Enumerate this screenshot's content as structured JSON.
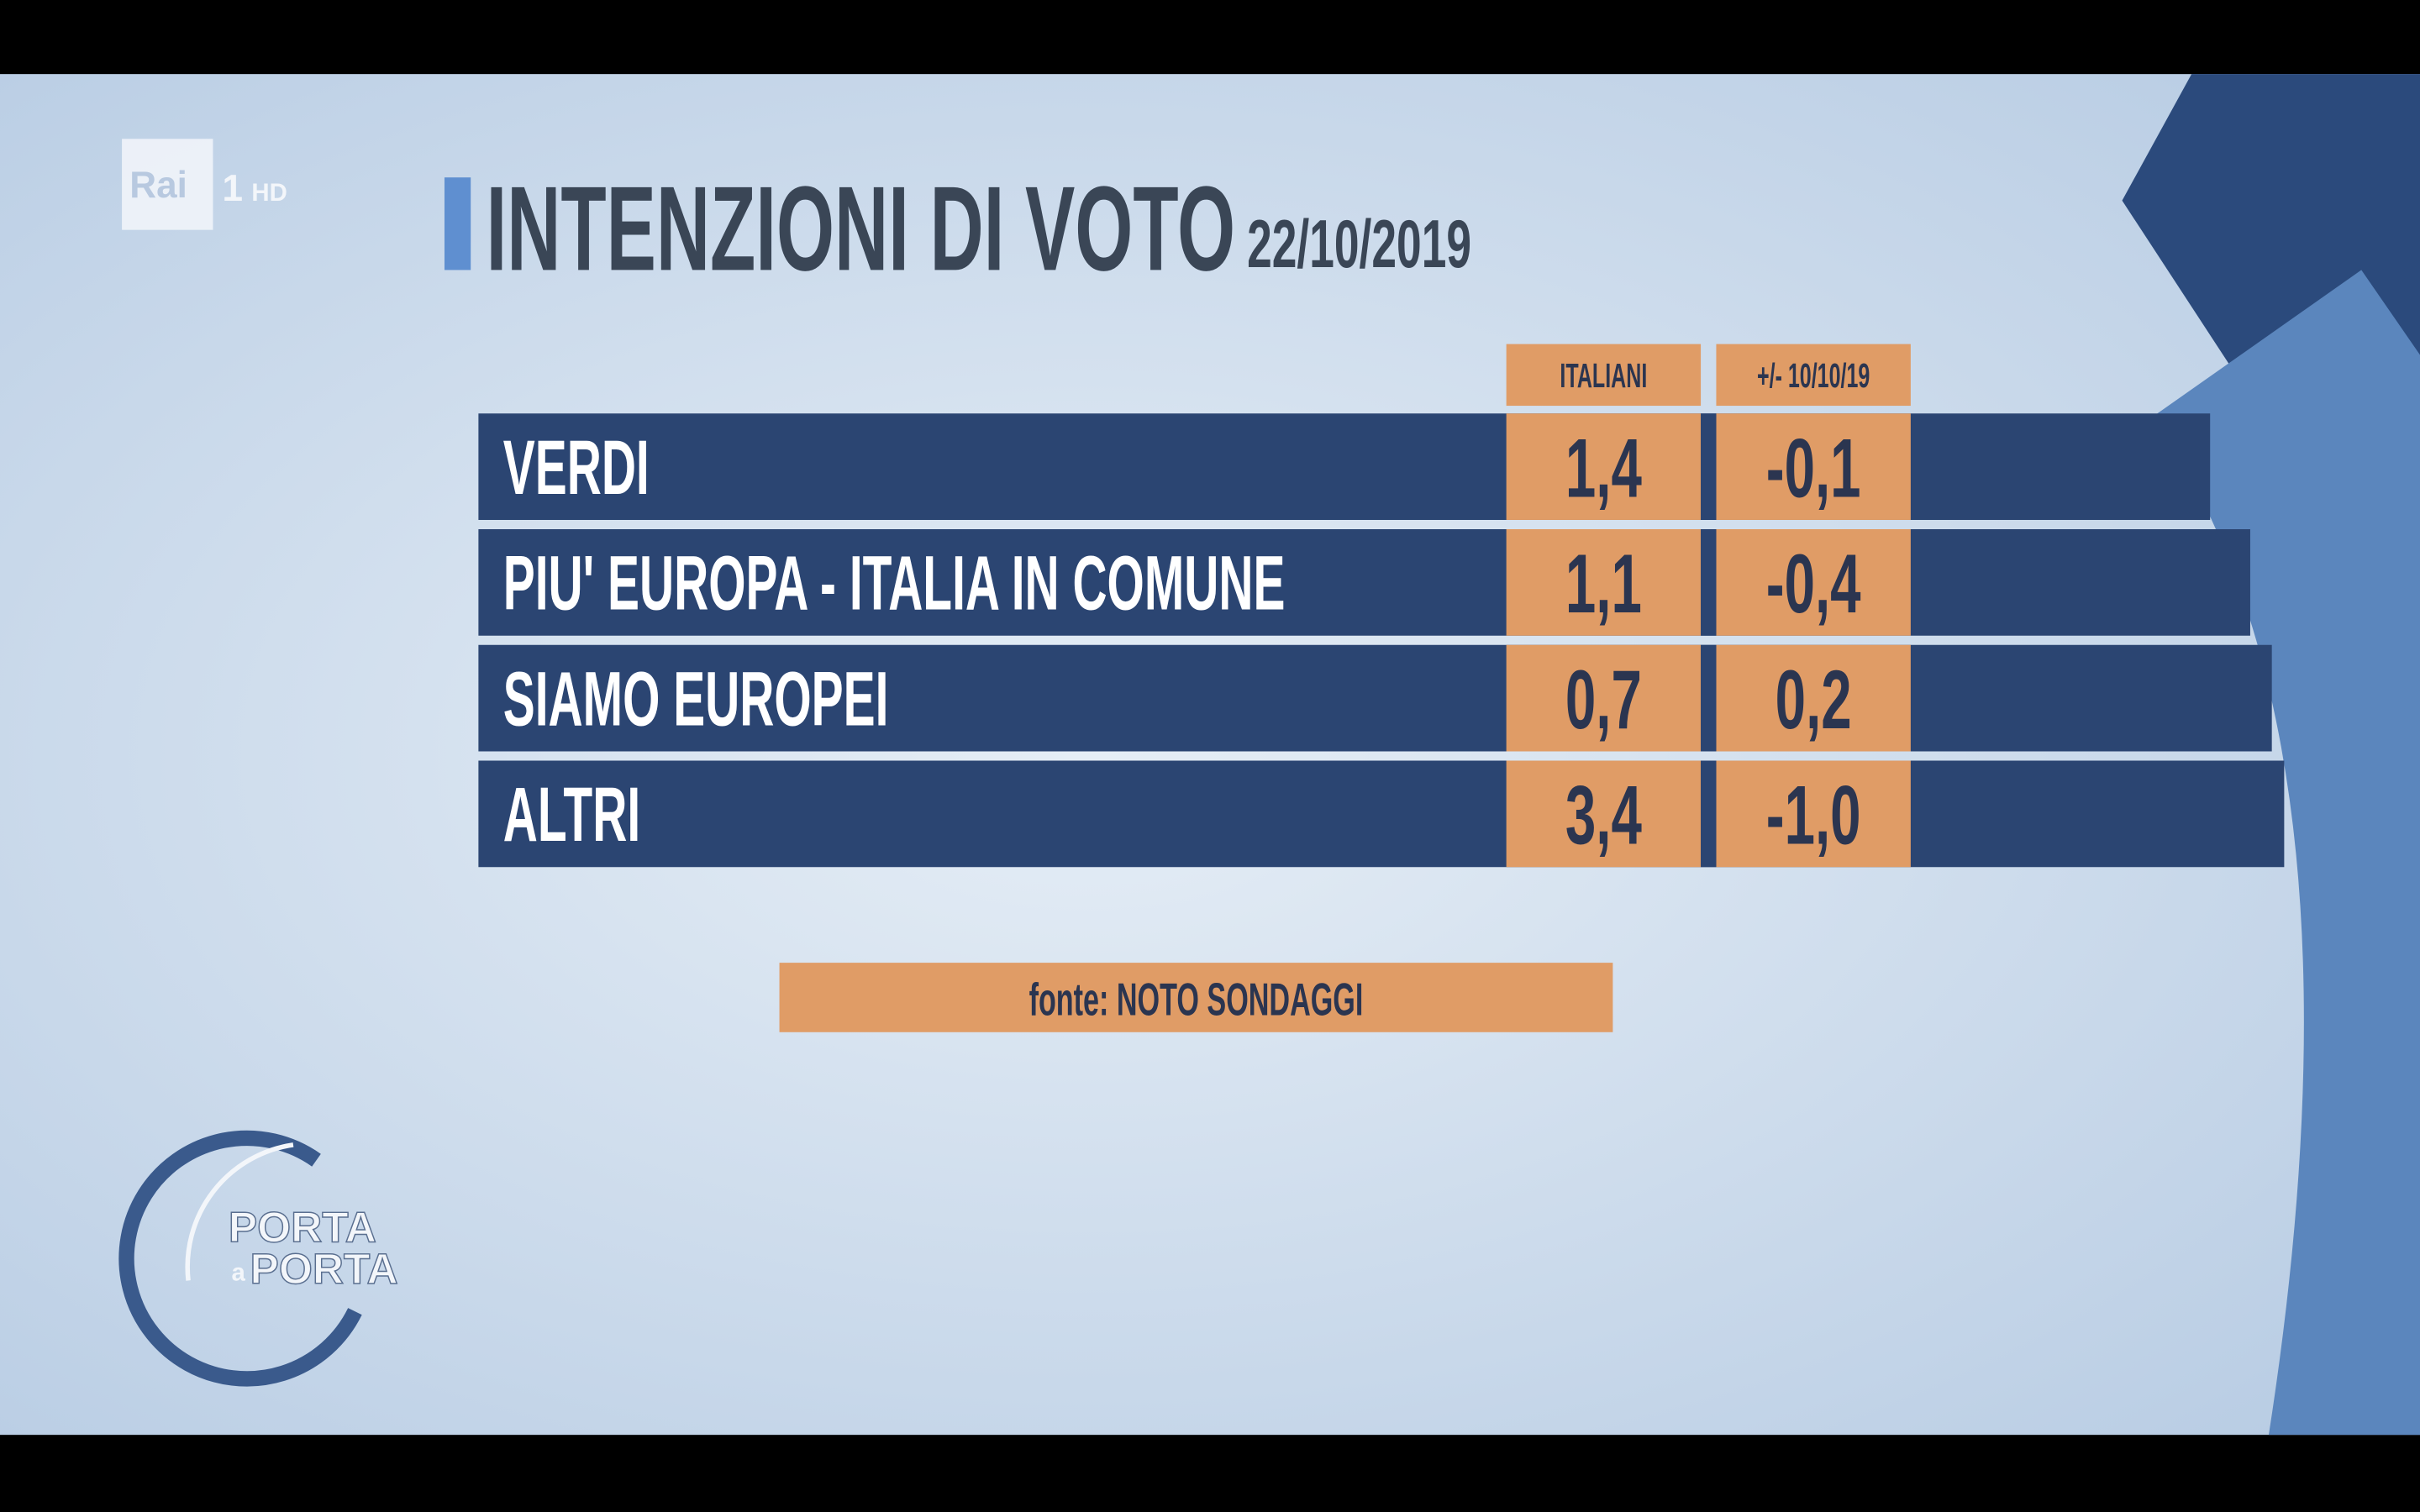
{
  "logo": {
    "channel": "Rai",
    "number": "1",
    "hd": "HD"
  },
  "header": {
    "title": "INTENZIONI DI VOTO",
    "date": "22/10/2019"
  },
  "table": {
    "columns": [
      "ITALIANI",
      "+/- 10/10/19"
    ],
    "rows": [
      [
        "VERDI",
        "1,4",
        "-0,1"
      ],
      [
        "PIU' EUROPA - ITALIA IN COMUNE",
        "1,1",
        "-0,4"
      ],
      [
        "SIAMO EUROPEI",
        "0,7",
        "0,2"
      ],
      [
        "ALTRI",
        "3,4",
        "-1,0"
      ]
    ]
  },
  "source": "fonte: NOTO SONDAGGI",
  "show_logo": {
    "line1": "PORTA",
    "line2": "a",
    "line3": "PORTA"
  }
}
